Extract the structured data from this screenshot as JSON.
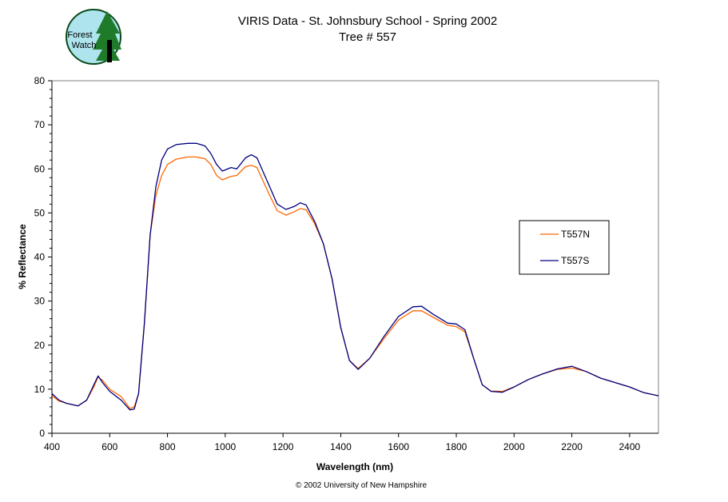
{
  "logo": {
    "text": "Forest Watch"
  },
  "chart_data": {
    "type": "line",
    "title": "VIRIS Data - St. Johnsbury School - Spring 2002",
    "subtitle": "Tree # 557",
    "xlabel": "Wavelength (nm)",
    "ylabel": "% Reflectance",
    "xlim": [
      400,
      2500
    ],
    "ylim": [
      0,
      80
    ],
    "xticks": [
      400,
      600,
      800,
      1000,
      1200,
      1400,
      1600,
      1800,
      2000,
      2200,
      2400
    ],
    "yticks": [
      0,
      10,
      20,
      30,
      40,
      50,
      60,
      70,
      80
    ],
    "grid": false,
    "legend_position": "right",
    "footer": "© 2002 University of New Hampshire",
    "x": [
      400,
      425,
      450,
      490,
      520,
      545,
      560,
      575,
      600,
      640,
      670,
      685,
      700,
      720,
      740,
      760,
      780,
      800,
      830,
      870,
      900,
      930,
      950,
      970,
      990,
      1020,
      1040,
      1070,
      1090,
      1110,
      1150,
      1180,
      1210,
      1240,
      1260,
      1280,
      1310,
      1340,
      1370,
      1400,
      1430,
      1460,
      1500,
      1550,
      1600,
      1650,
      1680,
      1720,
      1770,
      1800,
      1830,
      1860,
      1890,
      1920,
      1960,
      2000,
      2050,
      2100,
      2150,
      2200,
      2250,
      2300,
      2350,
      2400,
      2450,
      2500
    ],
    "series": [
      {
        "name": "T557N",
        "color": "#ff6600",
        "values": [
          8.5,
          7.3,
          6.8,
          6.2,
          7.5,
          10.5,
          12.8,
          12,
          10,
          8.3,
          5.6,
          6,
          9,
          25,
          45,
          54,
          58.5,
          61,
          62.2,
          62.7,
          62.7,
          62.3,
          61,
          58.5,
          57.5,
          58.3,
          58.5,
          60.5,
          60.8,
          60.3,
          54.5,
          50.5,
          49.5,
          50.3,
          51,
          50.7,
          47.5,
          43,
          35,
          24,
          16.5,
          14.7,
          17,
          21.5,
          25.7,
          27.8,
          27.8,
          26.3,
          24.5,
          24.2,
          23,
          17,
          11,
          9.6,
          9.5,
          10.5,
          12.2,
          13.5,
          14.5,
          14.8,
          14,
          12.5,
          11.5,
          10.5,
          9.2,
          8.5
        ]
      },
      {
        "name": "T557S",
        "color": "#000080",
        "values": [
          9,
          7.5,
          6.8,
          6.2,
          7.5,
          11,
          13,
          11.5,
          9.5,
          7.5,
          5.3,
          5.5,
          9,
          25,
          45,
          56,
          62,
          64.5,
          65.5,
          65.8,
          65.8,
          65.2,
          63.5,
          61,
          59.5,
          60.3,
          60,
          62.5,
          63.2,
          62.5,
          56.5,
          52,
          50.8,
          51.5,
          52.3,
          51.8,
          48,
          43,
          35,
          24,
          16.5,
          14.5,
          17,
          22,
          26.5,
          28.7,
          28.8,
          27,
          25,
          24.8,
          23.5,
          17,
          11,
          9.5,
          9.3,
          10.5,
          12.2,
          13.5,
          14.6,
          15.2,
          14,
          12.5,
          11.5,
          10.5,
          9.2,
          8.5
        ]
      }
    ]
  }
}
